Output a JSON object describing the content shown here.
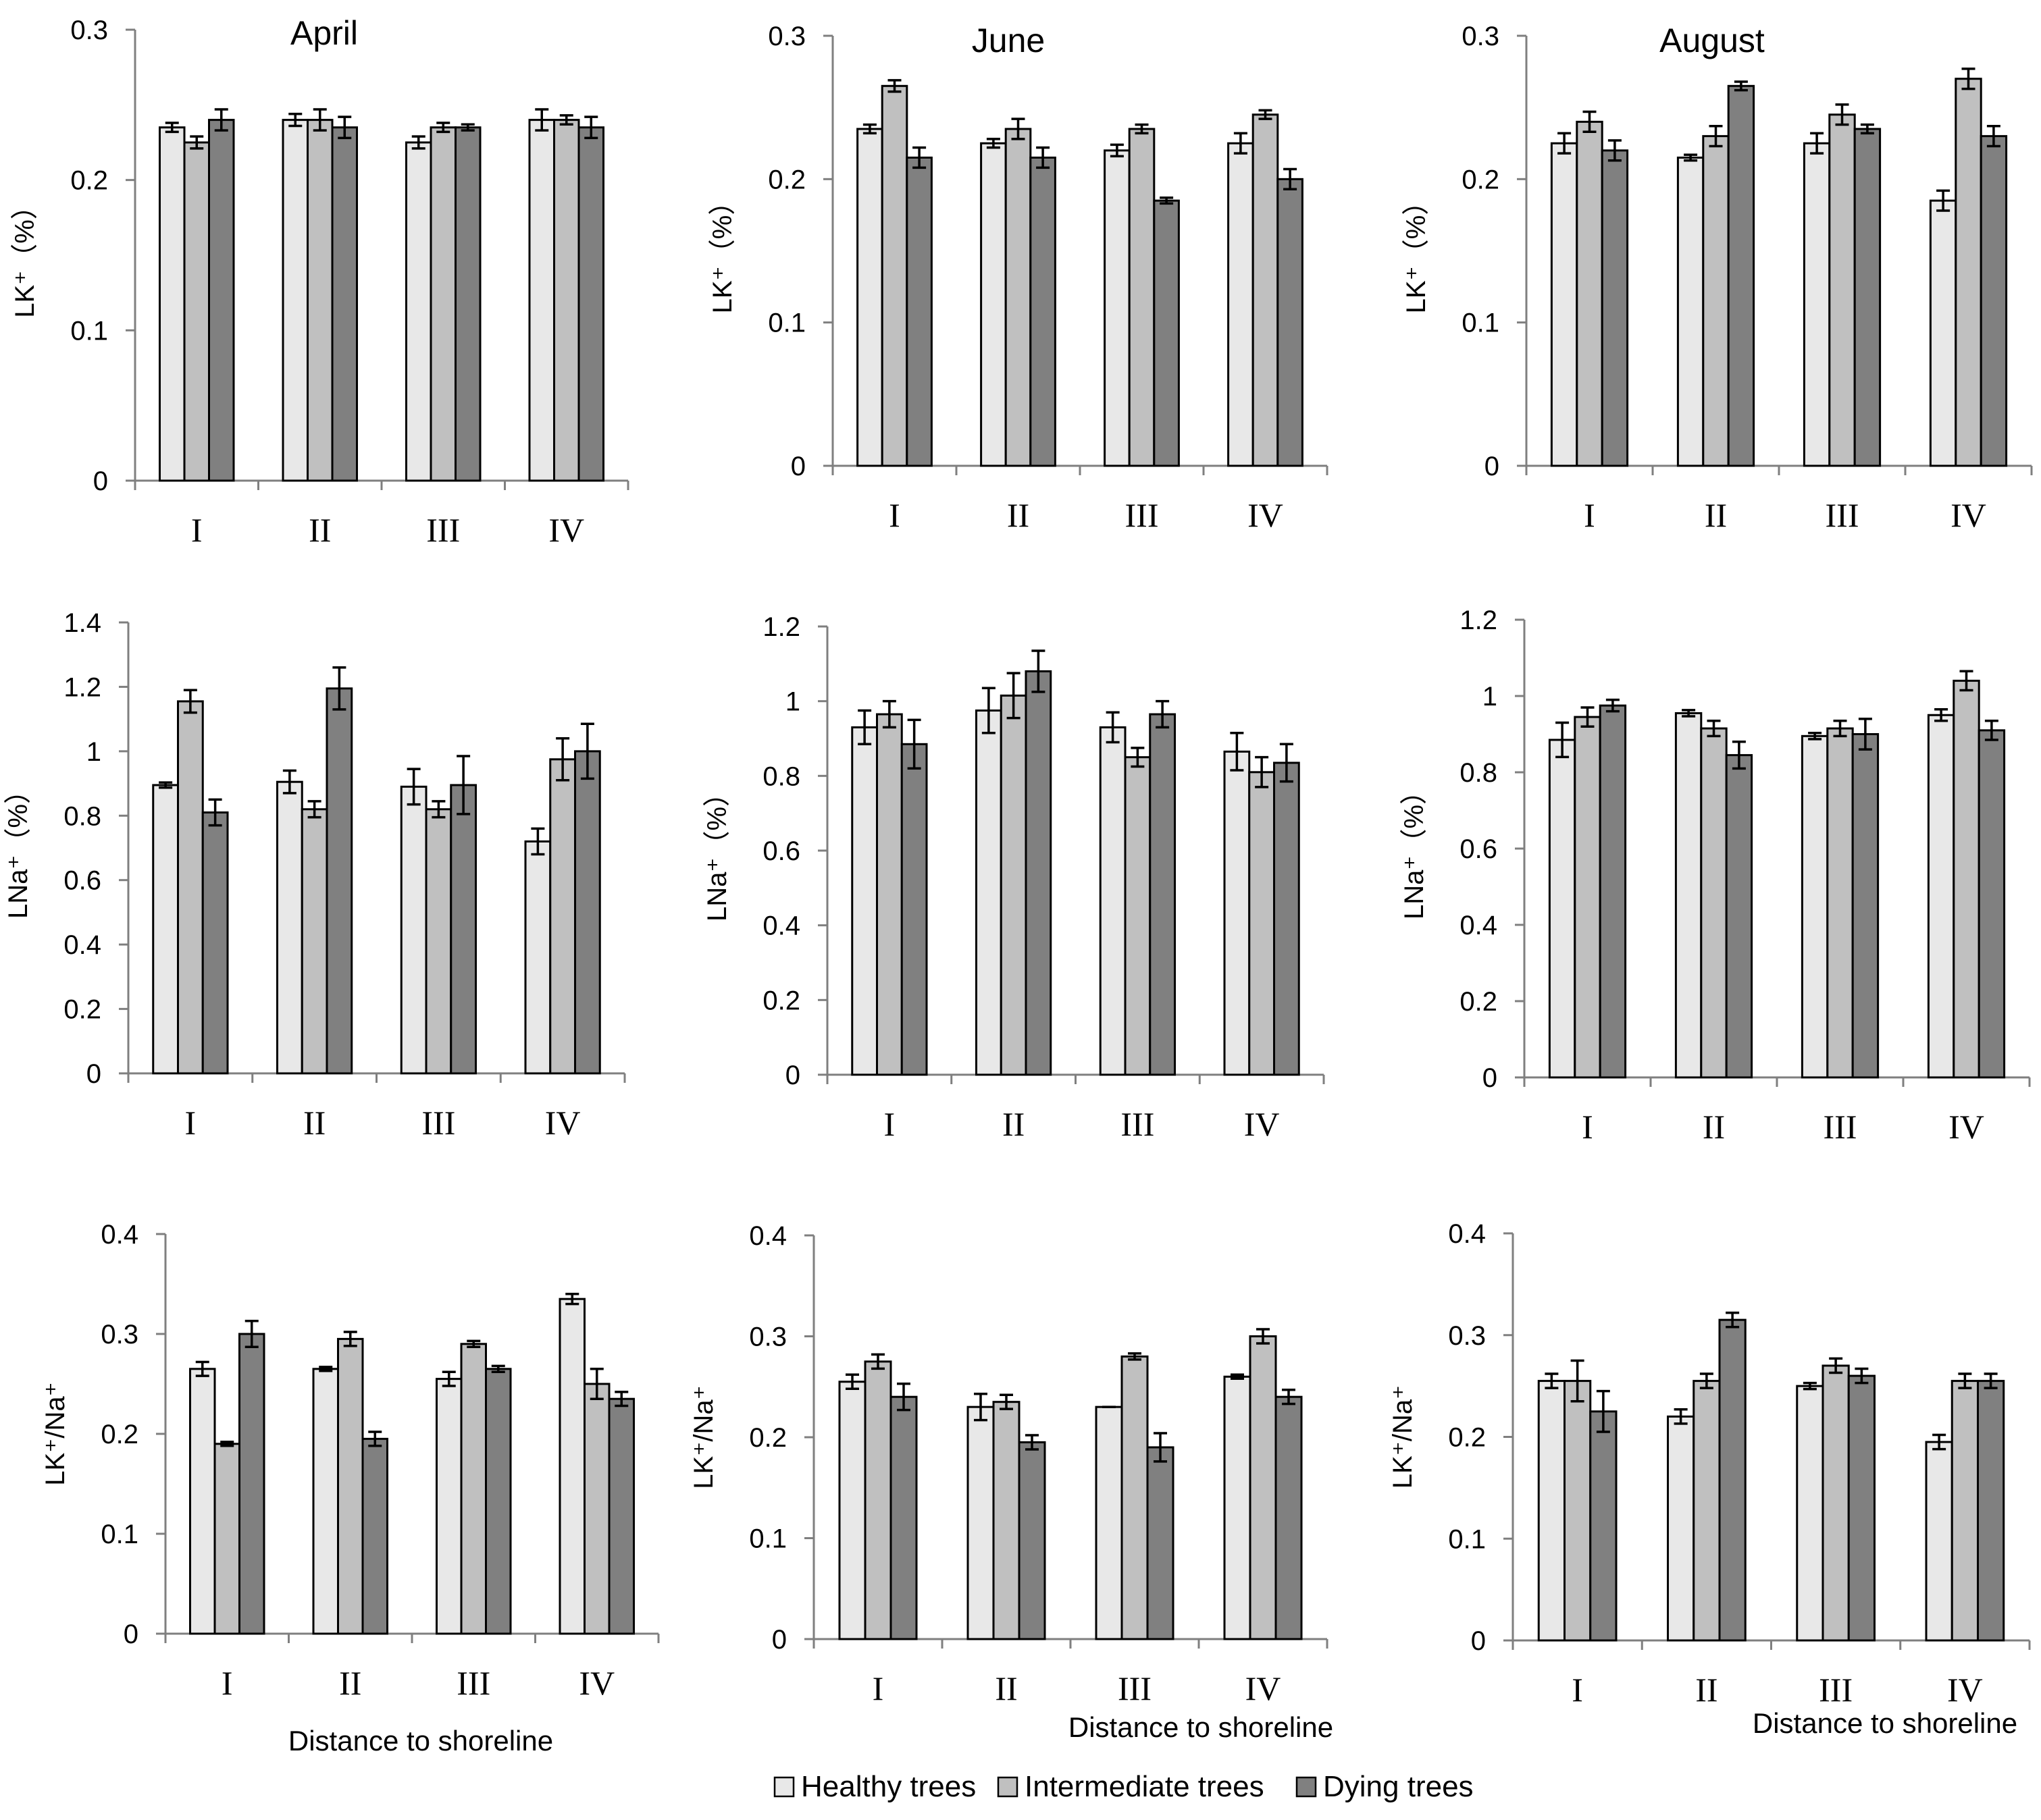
{
  "legend": {
    "items": [
      {
        "label": "Healthy trees",
        "color": "#e8e8e8"
      },
      {
        "label": "Intermediate trees",
        "color": "#c0c0c0"
      },
      {
        "label": "Dying trees",
        "color": "#808080"
      }
    ]
  },
  "chart_data": [
    {
      "type": "bar",
      "title": "April",
      "ylabel": "LK⁺（%）",
      "xlabel": "",
      "ylim": [
        0,
        0.3
      ],
      "yticks": [
        "0",
        "0.1",
        "0.2",
        "0.3"
      ],
      "categories": [
        "I",
        "II",
        "III",
        "IV"
      ],
      "series": [
        {
          "name": "Healthy trees",
          "values": [
            0.235,
            0.24,
            0.225,
            0.24
          ],
          "errors": [
            0.003,
            0.004,
            0.004,
            0.007
          ]
        },
        {
          "name": "Intermediate trees",
          "values": [
            0.225,
            0.24,
            0.235,
            0.24
          ],
          "errors": [
            0.004,
            0.007,
            0.003,
            0.003
          ]
        },
        {
          "name": "Dying trees",
          "values": [
            0.24,
            0.235,
            0.235,
            0.235
          ],
          "errors": [
            0.007,
            0.007,
            0.002,
            0.007
          ]
        }
      ]
    },
    {
      "type": "bar",
      "title": "June",
      "ylabel": "LK⁺（%）",
      "xlabel": "",
      "ylim": [
        0,
        0.3
      ],
      "yticks": [
        "0",
        "0.1",
        "0.2",
        "0.3"
      ],
      "categories": [
        "I",
        "II",
        "III",
        "IV"
      ],
      "series": [
        {
          "name": "Healthy trees",
          "values": [
            0.235,
            0.225,
            0.22,
            0.225
          ],
          "errors": [
            0.003,
            0.003,
            0.004,
            0.007
          ]
        },
        {
          "name": "Intermediate trees",
          "values": [
            0.265,
            0.235,
            0.235,
            0.245
          ],
          "errors": [
            0.004,
            0.007,
            0.003,
            0.003
          ]
        },
        {
          "name": "Dying trees",
          "values": [
            0.215,
            0.215,
            0.185,
            0.2
          ],
          "errors": [
            0.007,
            0.007,
            0.002,
            0.007
          ]
        }
      ]
    },
    {
      "type": "bar",
      "title": "August",
      "ylabel": "LK⁺（%）",
      "xlabel": "",
      "ylim": [
        0,
        0.3
      ],
      "yticks": [
        "0",
        "0.1",
        "0.2",
        "0.3"
      ],
      "categories": [
        "I",
        "II",
        "III",
        "IV"
      ],
      "series": [
        {
          "name": "Healthy trees",
          "values": [
            0.225,
            0.215,
            0.225,
            0.185
          ],
          "errors": [
            0.007,
            0.002,
            0.007,
            0.007
          ]
        },
        {
          "name": "Intermediate trees",
          "values": [
            0.24,
            0.23,
            0.245,
            0.27
          ],
          "errors": [
            0.007,
            0.007,
            0.007,
            0.007
          ]
        },
        {
          "name": "Dying trees",
          "values": [
            0.22,
            0.265,
            0.235,
            0.23
          ],
          "errors": [
            0.007,
            0.003,
            0.003,
            0.007
          ]
        }
      ]
    },
    {
      "type": "bar",
      "title": "",
      "ylabel": "LNa⁺（%）",
      "xlabel": "",
      "ylim": [
        0,
        1.4
      ],
      "yticks": [
        "0",
        "0.2",
        "0.4",
        "0.6",
        "0.8",
        "1",
        "1.2",
        "1.4"
      ],
      "categories": [
        "I",
        "II",
        "III",
        "IV"
      ],
      "series": [
        {
          "name": "Healthy trees",
          "values": [
            0.895,
            0.905,
            0.89,
            0.72
          ],
          "errors": [
            0.008,
            0.035,
            0.055,
            0.04
          ]
        },
        {
          "name": "Intermediate trees",
          "values": [
            1.155,
            0.82,
            0.82,
            0.975
          ],
          "errors": [
            0.035,
            0.025,
            0.025,
            0.065
          ]
        },
        {
          "name": "Dying trees",
          "values": [
            0.81,
            1.195,
            0.895,
            1.0
          ],
          "errors": [
            0.04,
            0.065,
            0.09,
            0.085
          ]
        }
      ]
    },
    {
      "type": "bar",
      "title": "",
      "ylabel": "LNa⁺（%）",
      "xlabel": "",
      "ylim": [
        0,
        1.2
      ],
      "yticks": [
        "0",
        "0.2",
        "0.4",
        "0.6",
        "0.8",
        "1",
        "1.2"
      ],
      "categories": [
        "I",
        "II",
        "III",
        "IV"
      ],
      "series": [
        {
          "name": "Healthy trees",
          "values": [
            0.93,
            0.975,
            0.93,
            0.865
          ],
          "errors": [
            0.045,
            0.06,
            0.04,
            0.05
          ]
        },
        {
          "name": "Intermediate trees",
          "values": [
            0.965,
            1.015,
            0.85,
            0.81
          ],
          "errors": [
            0.035,
            0.06,
            0.025,
            0.04
          ]
        },
        {
          "name": "Dying trees",
          "values": [
            0.885,
            1.08,
            0.965,
            0.835
          ],
          "errors": [
            0.065,
            0.055,
            0.035,
            0.05
          ]
        }
      ]
    },
    {
      "type": "bar",
      "title": "",
      "ylabel": "LNa⁺（%）",
      "xlabel": "",
      "ylim": [
        0,
        1.2
      ],
      "yticks": [
        "0",
        "0.2",
        "0.4",
        "0.6",
        "0.8",
        "1",
        "1.2"
      ],
      "categories": [
        "I",
        "II",
        "III",
        "IV"
      ],
      "series": [
        {
          "name": "Healthy trees",
          "values": [
            0.885,
            0.955,
            0.895,
            0.95
          ],
          "errors": [
            0.045,
            0.008,
            0.008,
            0.015
          ]
        },
        {
          "name": "Intermediate trees",
          "values": [
            0.945,
            0.915,
            0.915,
            1.04
          ],
          "errors": [
            0.025,
            0.02,
            0.02,
            0.025
          ]
        },
        {
          "name": "Dying trees",
          "values": [
            0.975,
            0.845,
            0.9,
            0.91
          ],
          "errors": [
            0.015,
            0.035,
            0.04,
            0.025
          ]
        }
      ]
    },
    {
      "type": "bar",
      "title": "",
      "ylabel": "LK⁺/Na⁺",
      "xlabel": "Distance to shoreline",
      "ylim": [
        0,
        0.4
      ],
      "yticks": [
        "0",
        "0.1",
        "0.2",
        "0.3",
        "0.4"
      ],
      "categories": [
        "I",
        "II",
        "III",
        "IV"
      ],
      "series": [
        {
          "name": "Healthy trees",
          "values": [
            0.265,
            0.265,
            0.255,
            0.335
          ],
          "errors": [
            0.007,
            0.002,
            0.007,
            0.005
          ]
        },
        {
          "name": "Intermediate trees",
          "values": [
            0.19,
            0.295,
            0.29,
            0.25
          ],
          "errors": [
            0.002,
            0.007,
            0.003,
            0.015
          ]
        },
        {
          "name": "Dying trees",
          "values": [
            0.3,
            0.195,
            0.265,
            0.235
          ],
          "errors": [
            0.013,
            0.007,
            0.003,
            0.007
          ]
        }
      ]
    },
    {
      "type": "bar",
      "title": "",
      "ylabel": "LK⁺/Na⁺",
      "xlabel": "Distance to shoreline",
      "ylim": [
        0,
        0.4
      ],
      "yticks": [
        "0",
        "0.1",
        "0.2",
        "0.3",
        "0.4"
      ],
      "categories": [
        "I",
        "II",
        "III",
        "IV"
      ],
      "series": [
        {
          "name": "Healthy trees",
          "values": [
            0.255,
            0.23,
            0.23,
            0.26
          ],
          "errors": [
            0.007,
            0.013,
            0.0,
            0.002
          ]
        },
        {
          "name": "Intermediate trees",
          "values": [
            0.275,
            0.235,
            0.28,
            0.3
          ],
          "errors": [
            0.007,
            0.007,
            0.003,
            0.007
          ]
        },
        {
          "name": "Dying trees",
          "values": [
            0.24,
            0.195,
            0.19,
            0.24
          ],
          "errors": [
            0.013,
            0.007,
            0.014,
            0.007
          ]
        }
      ]
    },
    {
      "type": "bar",
      "title": "",
      "ylabel": "LK⁺/Na⁺",
      "xlabel": "Distance to shoreline",
      "ylim": [
        0,
        0.4
      ],
      "yticks": [
        "0",
        "0.1",
        "0.2",
        "0.3",
        "0.4"
      ],
      "categories": [
        "I",
        "II",
        "III",
        "IV"
      ],
      "series": [
        {
          "name": "Healthy trees",
          "values": [
            0.255,
            0.22,
            0.25,
            0.195
          ],
          "errors": [
            0.007,
            0.007,
            0.003,
            0.007
          ]
        },
        {
          "name": "Intermediate trees",
          "values": [
            0.255,
            0.255,
            0.27,
            0.255
          ],
          "errors": [
            0.02,
            0.007,
            0.007,
            0.007
          ]
        },
        {
          "name": "Dying trees",
          "values": [
            0.225,
            0.315,
            0.26,
            0.255
          ],
          "errors": [
            0.02,
            0.007,
            0.007,
            0.007
          ]
        }
      ]
    }
  ]
}
